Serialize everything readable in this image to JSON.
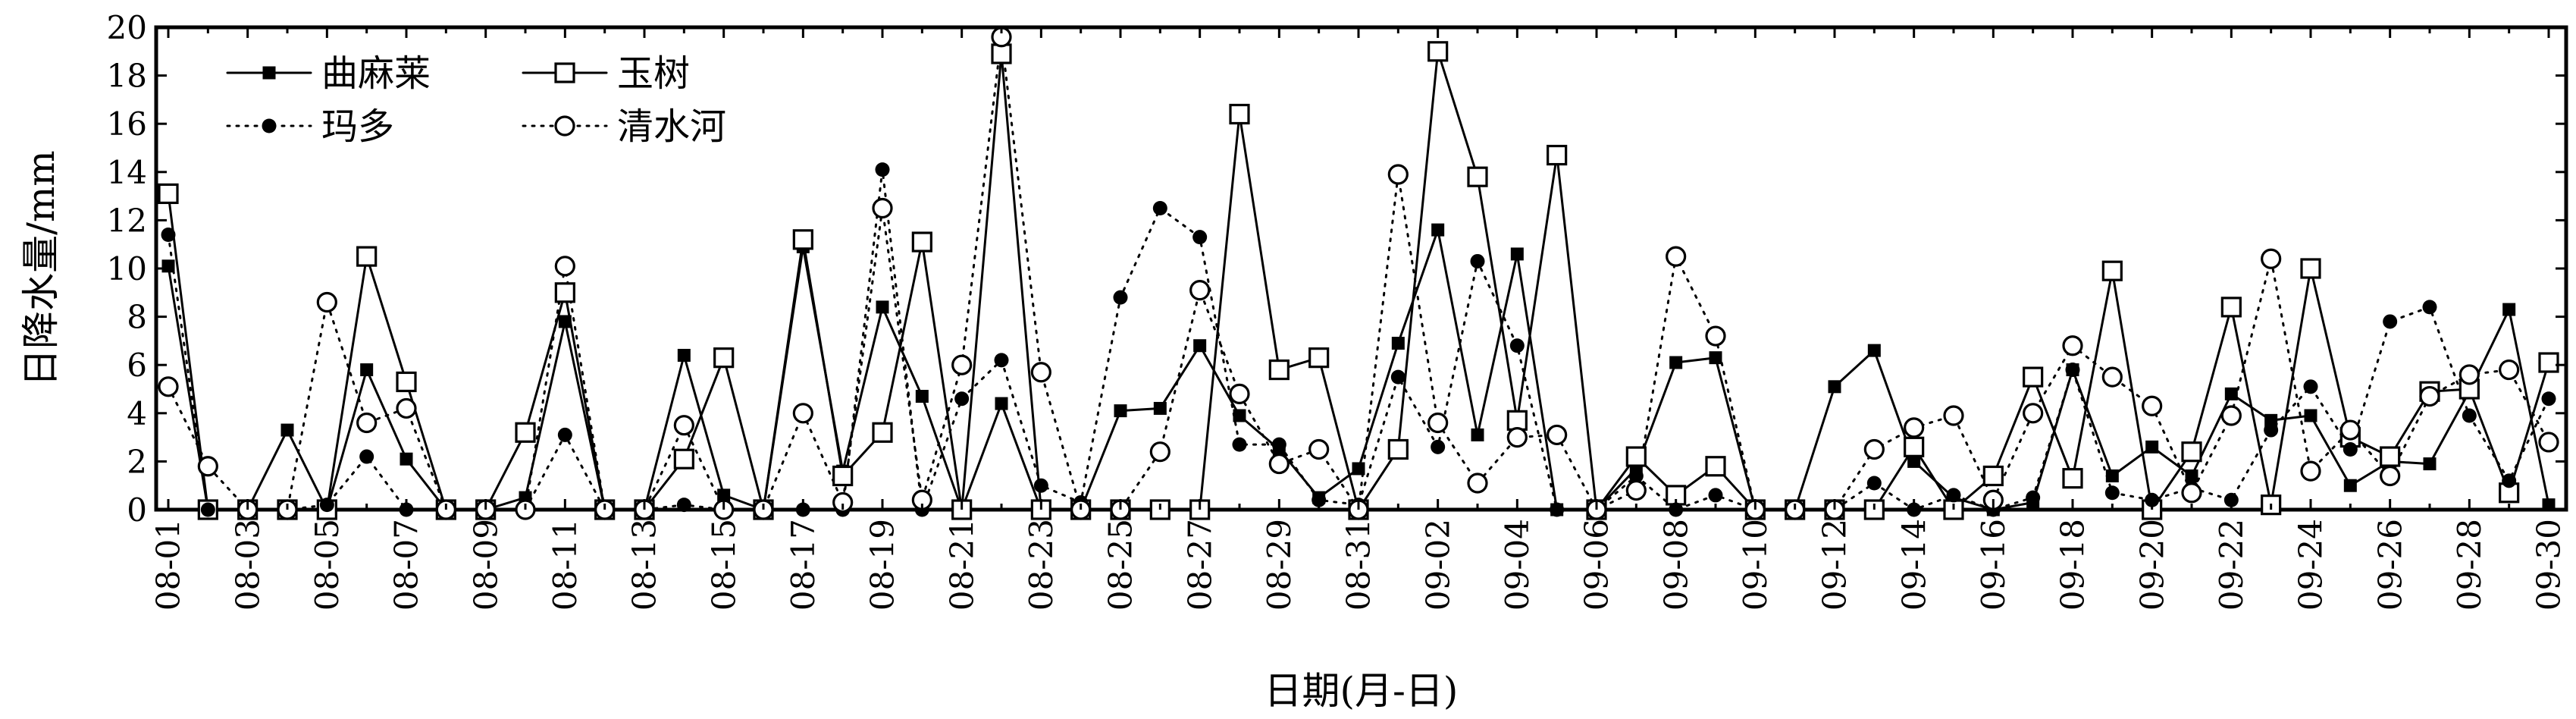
{
  "chart_data": {
    "type": "line",
    "xlabel": "日期(月-日)",
    "ylabel": "日降水量/mm",
    "ylim": [
      0,
      20
    ],
    "yticks": [
      0,
      2,
      4,
      6,
      8,
      10,
      12,
      14,
      16,
      18,
      20
    ],
    "grid": false,
    "legend_position": "top-left",
    "categories": [
      "08-01",
      "08-02",
      "08-03",
      "08-04",
      "08-05",
      "08-06",
      "08-07",
      "08-08",
      "08-09",
      "08-10",
      "08-11",
      "08-12",
      "08-13",
      "08-14",
      "08-15",
      "08-16",
      "08-17",
      "08-18",
      "08-19",
      "08-20",
      "08-21",
      "08-22",
      "08-23",
      "08-24",
      "08-25",
      "08-26",
      "08-27",
      "08-28",
      "08-29",
      "08-30",
      "08-31",
      "09-01",
      "09-02",
      "09-03",
      "09-04",
      "09-05",
      "09-06",
      "09-07",
      "09-08",
      "09-09",
      "09-10",
      "09-11",
      "09-12",
      "09-13",
      "09-14",
      "09-15",
      "09-16",
      "09-17",
      "09-18",
      "09-19",
      "09-20",
      "09-21",
      "09-22",
      "09-23",
      "09-24",
      "09-25",
      "09-26",
      "09-27",
      "09-28",
      "09-29",
      "09-30"
    ],
    "tick_labels": [
      "08-01",
      "08-03",
      "08-05",
      "08-07",
      "08-09",
      "08-11",
      "08-13",
      "08-15",
      "08-17",
      "08-19",
      "08-21",
      "08-23",
      "08-25",
      "08-27",
      "08-29",
      "08-31",
      "09-02",
      "09-04",
      "09-06",
      "09-08",
      "09-10",
      "09-12",
      "09-14",
      "09-16",
      "09-18",
      "09-20",
      "09-22",
      "09-24",
      "09-26",
      "09-28",
      "09-30"
    ],
    "series": [
      {
        "name": "曲麻莱",
        "line_style": "solid",
        "marker": "filled-square",
        "values": [
          10.1,
          0,
          0,
          3.3,
          0,
          5.8,
          2.1,
          0,
          0,
          0.5,
          7.8,
          0,
          0,
          6.4,
          0.6,
          0,
          10.9,
          1.6,
          8.4,
          4.7,
          0,
          4.4,
          0,
          0,
          4.1,
          4.2,
          6.8,
          3.9,
          2.5,
          0.5,
          1.7,
          6.9,
          11.6,
          3.1,
          10.6,
          0,
          0,
          1.7,
          6.1,
          6.3,
          0,
          0,
          5.1,
          6.6,
          2.0,
          0.5,
          0,
          0.3,
          5.8,
          1.4,
          2.6,
          1.4,
          4.8,
          3.7,
          3.9,
          1.0,
          2.0,
          1.9,
          4.9,
          8.3,
          0.2
        ]
      },
      {
        "name": "玉树",
        "line_style": "solid",
        "marker": "open-square",
        "values": [
          13.1,
          0,
          0,
          0,
          0,
          10.5,
          5.3,
          0,
          0,
          3.2,
          9.0,
          0,
          0,
          2.1,
          6.3,
          0,
          11.2,
          1.4,
          3.2,
          11.1,
          0,
          18.9,
          0,
          0,
          0,
          0,
          0,
          16.4,
          5.8,
          6.3,
          0,
          2.5,
          19.0,
          13.8,
          3.7,
          14.7,
          0,
          2.2,
          0.6,
          1.8,
          0,
          0,
          0,
          0,
          2.6,
          0,
          1.4,
          5.5,
          1.3,
          9.9,
          0,
          2.4,
          8.4,
          0.2,
          10.0,
          3.0,
          2.2,
          4.9,
          5.0,
          0.7,
          6.1
        ]
      },
      {
        "name": "玛多",
        "line_style": "dotted",
        "marker": "filled-circle",
        "values": [
          11.4,
          0,
          0,
          0,
          0.2,
          2.2,
          0,
          0,
          0,
          0,
          3.1,
          0,
          0,
          0.2,
          0,
          0,
          0,
          0,
          14.1,
          0,
          4.6,
          6.2,
          1.0,
          0.3,
          8.8,
          12.5,
          11.3,
          2.7,
          2.7,
          0.4,
          0.2,
          5.5,
          2.6,
          10.3,
          6.8,
          0,
          0,
          1.4,
          0,
          0.6,
          0,
          0,
          0,
          1.1,
          0,
          0.6,
          0,
          0.5,
          5.8,
          0.7,
          0.4,
          0.9,
          0.4,
          3.3,
          5.1,
          2.5,
          7.8,
          8.4,
          3.9,
          1.2,
          4.6
        ]
      },
      {
        "name": "清水河",
        "line_style": "dotted",
        "marker": "open-circle",
        "values": [
          5.1,
          1.8,
          0,
          0,
          8.6,
          3.6,
          4.2,
          0,
          0,
          0,
          10.1,
          0,
          0,
          3.5,
          0,
          0,
          4.0,
          0.3,
          12.5,
          0.4,
          6.0,
          19.6,
          5.7,
          0,
          0,
          2.4,
          9.1,
          4.8,
          1.9,
          2.5,
          0,
          13.9,
          3.6,
          1.1,
          3.0,
          3.1,
          0,
          0.8,
          10.5,
          7.2,
          0,
          0,
          0,
          2.5,
          3.4,
          3.9,
          0.4,
          4.0,
          6.8,
          5.5,
          4.3,
          0.7,
          3.9,
          10.4,
          1.6,
          3.3,
          1.4,
          4.7,
          5.6,
          5.8,
          2.8
        ]
      }
    ]
  }
}
